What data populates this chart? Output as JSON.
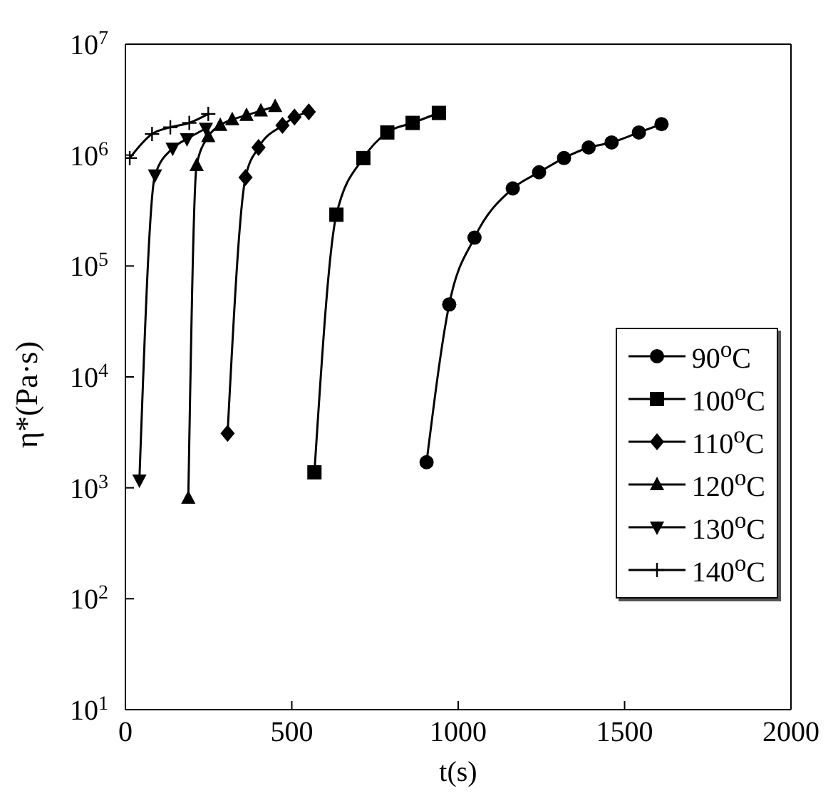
{
  "chart_data": {
    "type": "line",
    "xlabel": "t(s)",
    "ylabel": "η*(Pa·s)",
    "log": "y",
    "xlim": [
      0,
      2000
    ],
    "xticks": [
      0,
      500,
      1000,
      1500,
      2000
    ],
    "ylim": [
      10,
      10000000
    ],
    "yticks": [
      {
        "value": 10,
        "label": "10$^{1}$"
      },
      {
        "value": 100,
        "label": "10$^{2}$"
      },
      {
        "value": 1000,
        "label": "10$^{3}$"
      },
      {
        "value": 10000,
        "label": "10$^{4}$"
      },
      {
        "value": 100000,
        "label": "10$^{5}$"
      },
      {
        "value": 1000000,
        "label": "10$^{6}$"
      },
      {
        "value": 10000000,
        "label": "10$^{7}$"
      }
    ],
    "grid": false,
    "legend": "right",
    "line_style": "solid",
    "series": [
      {
        "name": "90$^{o}$C",
        "color": "#000000",
        "marker": "circle",
        "x": [
          905,
          973,
          1049,
          1164,
          1243,
          1318,
          1392,
          1461,
          1543,
          1611
        ],
        "values": [
          1700,
          45000,
          180000,
          500000,
          700000,
          940000,
          1170000,
          1300000,
          1600000,
          1900000
        ]
      },
      {
        "name": "100$^{o}$C",
        "color": "#000000",
        "marker": "square",
        "x": [
          568,
          634,
          715,
          787,
          863,
          942
        ],
        "values": [
          1380,
          290000,
          940000,
          1600000,
          1950000,
          2400000
        ]
      },
      {
        "name": "110$^{o}$C",
        "color": "#000000",
        "marker": "diamond",
        "x": [
          307,
          361,
          400,
          472,
          508,
          551
        ],
        "values": [
          3100,
          630000,
          1170000,
          1850000,
          2200000,
          2450000
        ]
      },
      {
        "name": "120$^{o}$C",
        "color": "#000000",
        "marker": "triangle",
        "x": [
          189,
          214,
          249,
          285,
          321,
          364,
          407,
          450
        ],
        "values": [
          810,
          810000,
          1470000,
          1860000,
          2090000,
          2290000,
          2510000,
          2750000
        ]
      },
      {
        "name": "130$^{o}$C",
        "color": "#000000",
        "marker": "triangle-down",
        "x": [
          42,
          89,
          142,
          185,
          242
        ],
        "values": [
          1170,
          660000,
          1150000,
          1400000,
          1740000
        ]
      },
      {
        "name": "140$^{o}$C",
        "color": "#000000",
        "marker": "cross",
        "x": [
          13,
          80,
          135,
          192,
          249
        ],
        "values": [
          940000,
          1550000,
          1780000,
          1950000,
          2350000
        ]
      }
    ]
  }
}
